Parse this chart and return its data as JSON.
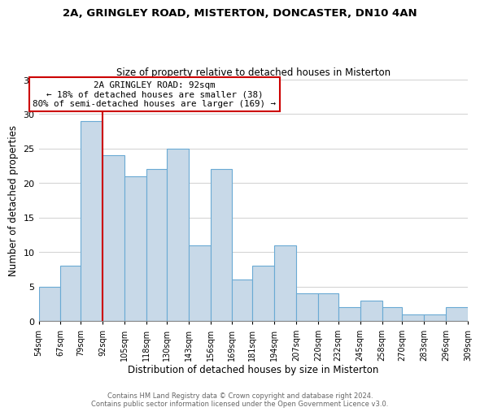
{
  "title": "2A, GRINGLEY ROAD, MISTERTON, DONCASTER, DN10 4AN",
  "subtitle": "Size of property relative to detached houses in Misterton",
  "xlabel": "Distribution of detached houses by size in Misterton",
  "ylabel": "Number of detached properties",
  "footer_line1": "Contains HM Land Registry data © Crown copyright and database right 2024.",
  "footer_line2": "Contains public sector information licensed under the Open Government Licence v3.0.",
  "bar_edges": [
    54,
    67,
    79,
    92,
    105,
    118,
    130,
    143,
    156,
    169,
    181,
    194,
    207,
    220,
    232,
    245,
    258,
    270,
    283,
    296,
    309
  ],
  "bar_heights": [
    5,
    8,
    29,
    24,
    21,
    22,
    25,
    11,
    22,
    6,
    8,
    11,
    4,
    4,
    2,
    3,
    2,
    1,
    1,
    2
  ],
  "bar_color": "#c8d9e8",
  "bar_edge_color": "#6aaad4",
  "vline_x": 92,
  "vline_color": "#cc0000",
  "annotation_title": "2A GRINGLEY ROAD: 92sqm",
  "annotation_line1": "← 18% of detached houses are smaller (38)",
  "annotation_line2": "80% of semi-detached houses are larger (169) →",
  "annotation_box_color": "#ffffff",
  "annotation_box_edgecolor": "#cc0000",
  "xlim_left": 54,
  "xlim_right": 309,
  "ylim_top": 35,
  "tick_labels": [
    "54sqm",
    "67sqm",
    "79sqm",
    "92sqm",
    "105sqm",
    "118sqm",
    "130sqm",
    "143sqm",
    "156sqm",
    "169sqm",
    "181sqm",
    "194sqm",
    "207sqm",
    "220sqm",
    "232sqm",
    "245sqm",
    "258sqm",
    "270sqm",
    "283sqm",
    "296sqm",
    "309sqm"
  ],
  "tick_positions": [
    54,
    67,
    79,
    92,
    105,
    118,
    130,
    143,
    156,
    169,
    181,
    194,
    207,
    220,
    232,
    245,
    258,
    270,
    283,
    296,
    309
  ],
  "yticks": [
    0,
    5,
    10,
    15,
    20,
    25,
    30,
    35
  ],
  "grid_color": "#d0d0d0",
  "background_color": "#ffffff"
}
